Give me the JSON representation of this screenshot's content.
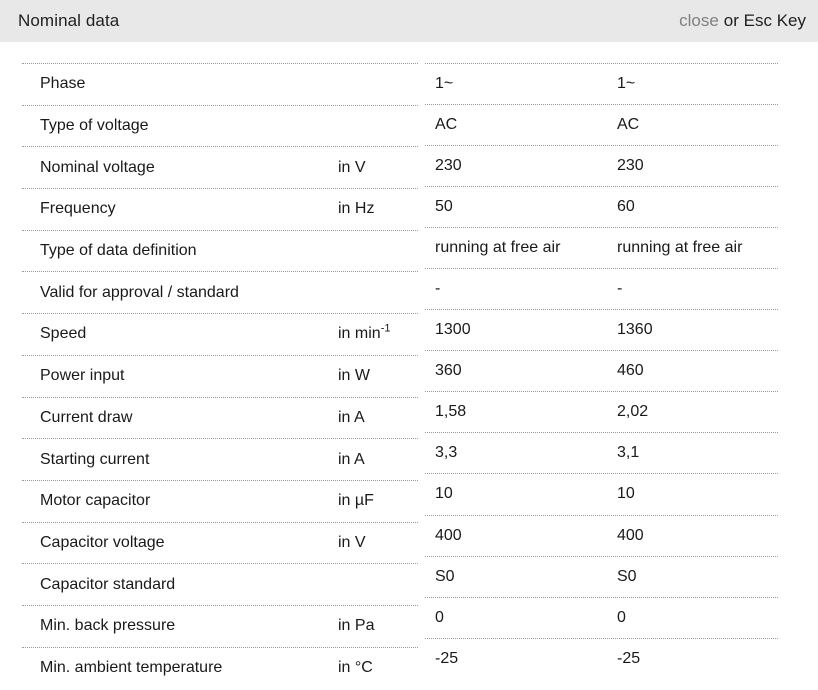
{
  "header": {
    "title": "Nominal data",
    "close_label": "close",
    "close_suffix": "or Esc Key"
  },
  "table": {
    "rows": [
      {
        "label": "Phase",
        "unit": "",
        "unit_sup": "",
        "values": [
          "1~",
          "1~"
        ]
      },
      {
        "label": "Type of voltage",
        "unit": "",
        "unit_sup": "",
        "values": [
          "AC",
          "AC"
        ]
      },
      {
        "label": "Nominal voltage",
        "unit": "in V",
        "unit_sup": "",
        "values": [
          "230",
          "230"
        ]
      },
      {
        "label": "Frequency",
        "unit": "in Hz",
        "unit_sup": "",
        "values": [
          "50",
          "60"
        ]
      },
      {
        "label": "Type of data definition",
        "unit": "",
        "unit_sup": "",
        "values": [
          "running at free air",
          "running at free air"
        ]
      },
      {
        "label": "Valid for approval / standard",
        "unit": "",
        "unit_sup": "",
        "values": [
          "-",
          "-"
        ]
      },
      {
        "label": "Speed",
        "unit": "in min",
        "unit_sup": "-1",
        "values": [
          "1300",
          "1360"
        ]
      },
      {
        "label": "Power input",
        "unit": "in W",
        "unit_sup": "",
        "values": [
          "360",
          "460"
        ]
      },
      {
        "label": "Current draw",
        "unit": "in A",
        "unit_sup": "",
        "values": [
          "1,58",
          "2,02"
        ]
      },
      {
        "label": "Starting current",
        "unit": "in A",
        "unit_sup": "",
        "values": [
          "3,3",
          "3,1"
        ]
      },
      {
        "label": "Motor capacitor",
        "unit": "in µF",
        "unit_sup": "",
        "values": [
          "10",
          "10"
        ]
      },
      {
        "label": "Capacitor voltage",
        "unit": "in V",
        "unit_sup": "",
        "values": [
          "400",
          "400"
        ]
      },
      {
        "label": "Capacitor standard",
        "unit": "",
        "unit_sup": "",
        "values": [
          "S0",
          "S0"
        ]
      },
      {
        "label": "Min. back pressure",
        "unit": "in Pa",
        "unit_sup": "",
        "values": [
          "0",
          "0"
        ]
      },
      {
        "label": "Min. ambient temperature",
        "unit": "in °C",
        "unit_sup": "",
        "values": [
          "-25",
          "-25"
        ]
      }
    ]
  },
  "colors": {
    "header_bg": "#e8e8e8",
    "close_gray": "#808080",
    "text": "#1a1a1a",
    "divider": "#9b9b9b"
  }
}
